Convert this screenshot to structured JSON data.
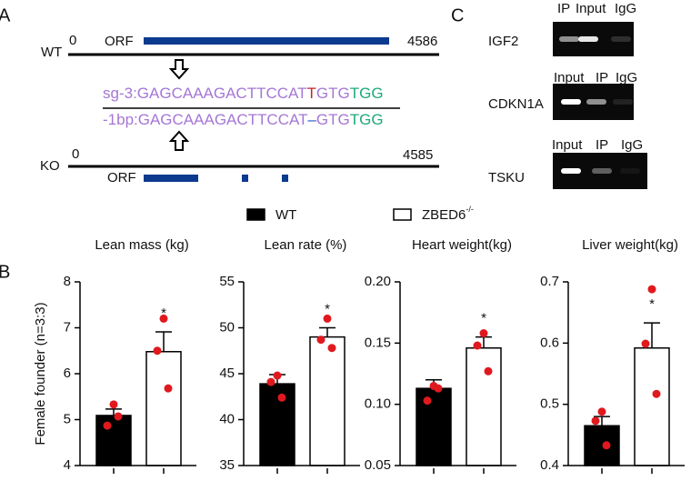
{
  "panel_labels": [
    "A",
    "B",
    "C"
  ],
  "panel_a": {
    "wt": {
      "label": "WT",
      "start": "0",
      "orf": "ORF",
      "end": "4586",
      "color": "#0b3a8f"
    },
    "sequences": [
      {
        "parts": [
          {
            "text": "sg-3:GAGCAAAGACTTCCAT",
            "color": "#a576d6"
          },
          {
            "text": "T",
            "color": "#c0262b"
          },
          {
            "text": "GTG",
            "color": "#a576d6"
          },
          {
            "text": "TGG",
            "color": "#1ea97c"
          }
        ]
      },
      {
        "parts": [
          {
            "text": "-1bp:GAGCAAAGACTTCCAT",
            "color": "#a576d6"
          },
          {
            "text": "–",
            "color": "#2a56c6"
          },
          {
            "text": "GTG",
            "color": "#a576d6"
          },
          {
            "text": "TGG",
            "color": "#1ea97c"
          }
        ]
      }
    ],
    "ko": {
      "label": "KO",
      "start": "0",
      "orf": "ORF",
      "end": "4585",
      "color": "#0b3a8f"
    }
  },
  "panel_c": {
    "gels": [
      {
        "gene": "IGF2",
        "lanes": [
          "IP",
          "Input",
          "IgG"
        ]
      },
      {
        "gene": "CDKN1A",
        "lanes": [
          "Input",
          "IP",
          "IgG"
        ]
      },
      {
        "gene": "TSKU",
        "lanes": [
          "Input",
          "IP",
          "IgG"
        ]
      }
    ]
  },
  "legend": [
    {
      "name": "WT",
      "color": "#000000"
    },
    {
      "name": "ZBED6",
      "sup": "-/-",
      "color": "#ffffff"
    }
  ],
  "chart_data": [
    {
      "type": "bar",
      "title": "Lean mass (kg)",
      "ylabel": "Female founder (n=3:3)",
      "categories": [
        null
      ],
      "ylim": [
        4,
        8
      ],
      "yticks": [
        4,
        5,
        6,
        7,
        8
      ],
      "annotation": "*",
      "point_color": "#e0191e",
      "series": [
        {
          "color": "#000000",
          "values": [
            5.09
          ],
          "errors": [
            0.14
          ],
          "points": [
            [
              5.33,
              4.87,
              5.07
            ]
          ]
        },
        {
          "color": "#ffffff",
          "values": [
            6.48
          ],
          "errors": [
            0.43
          ],
          "points": [
            [
              7.2,
              6.5,
              5.68
            ]
          ]
        }
      ]
    },
    {
      "type": "bar",
      "title": "Lean rate (%)",
      "categories": [
        null
      ],
      "ylim": [
        35,
        55
      ],
      "yticks": [
        35,
        40,
        45,
        50,
        55
      ],
      "annotation": "*",
      "point_color": "#e0191e",
      "series": [
        {
          "color": "#000000",
          "values": [
            43.9
          ],
          "errors": [
            1.0
          ],
          "points": [
            [
              44.8,
              44.1,
              42.4
            ]
          ]
        },
        {
          "color": "#ffffff",
          "values": [
            49.0
          ],
          "errors": [
            1.0
          ],
          "points": [
            [
              51.0,
              48.7,
              47.8
            ]
          ]
        }
      ]
    },
    {
      "type": "bar",
      "title": "Heart weight(kg)",
      "categories": [
        null
      ],
      "ylim": [
        0.05,
        0.2
      ],
      "yticks": [
        0.05,
        {
          "value": 0.1,
          "label": "0.10"
        },
        0.15,
        {
          "value": 0.2,
          "label": "0.20"
        }
      ],
      "annotation": "*",
      "point_color": "#e0191e",
      "series": [
        {
          "color": "#000000",
          "values": [
            0.113
          ],
          "errors": [
            0.007
          ],
          "points": [
            [
              0.115,
              0.103,
              0.113
            ]
          ]
        },
        {
          "color": "#ffffff",
          "values": [
            0.146
          ],
          "errors": [
            0.009
          ],
          "points": [
            [
              0.158,
              0.148,
              0.127
            ]
          ]
        }
      ]
    },
    {
      "type": "bar",
      "title": "Liver weight(kg)",
      "categories": [
        null
      ],
      "ylim": [
        0.4,
        0.7
      ],
      "yticks": [
        0.4,
        0.5,
        0.6,
        0.7
      ],
      "annotation": "*",
      "point_color": "#e0191e",
      "series": [
        {
          "color": "#000000",
          "values": [
            0.465
          ],
          "errors": [
            0.015
          ],
          "points": [
            [
              0.488,
              0.473,
              0.433
            ]
          ]
        },
        {
          "color": "#ffffff",
          "values": [
            0.592
          ],
          "errors": [
            0.041
          ],
          "points": [
            [
              0.688,
              0.599,
              0.517
            ]
          ]
        }
      ]
    }
  ]
}
